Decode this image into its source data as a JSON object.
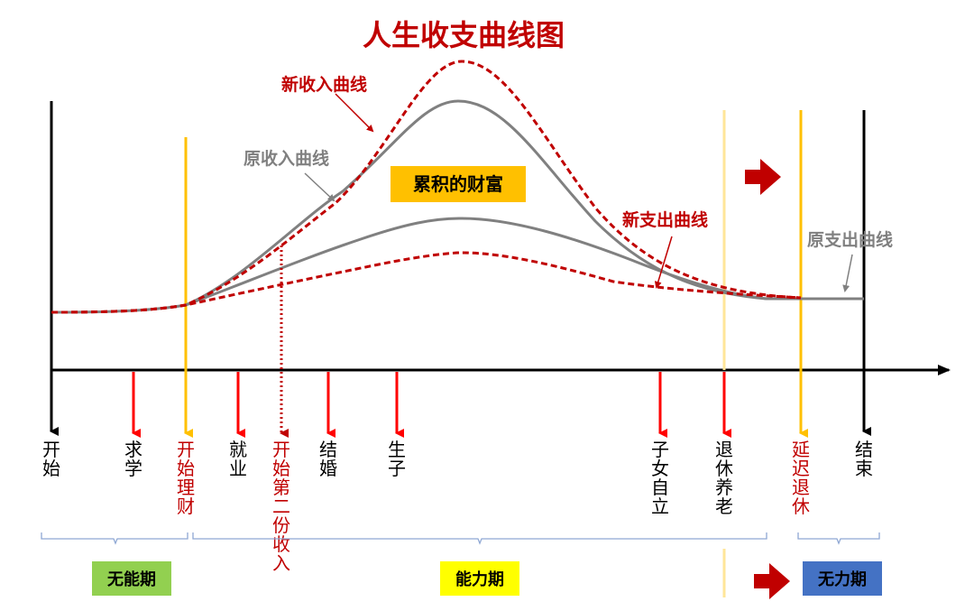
{
  "title": "人生收支曲线图",
  "curve_labels": {
    "new_income": "新收入曲线",
    "orig_income": "原收入曲线",
    "new_expense": "新支出曲线",
    "orig_expense": "原支出曲线"
  },
  "wealth_label": "累积的财富",
  "milestones": [
    {
      "key": "start",
      "label": "开始"
    },
    {
      "key": "study",
      "label": "求学"
    },
    {
      "key": "start-finance",
      "label": "开始理财"
    },
    {
      "key": "employment",
      "label": "就业"
    },
    {
      "key": "second-income",
      "label": "开始第二份收入"
    },
    {
      "key": "marriage",
      "label": "结婚"
    },
    {
      "key": "child",
      "label": "生子"
    },
    {
      "key": "children-independent",
      "label": "子女自立"
    },
    {
      "key": "retirement",
      "label": "退休养老"
    },
    {
      "key": "delayed-retirement",
      "label": "延迟退休"
    },
    {
      "key": "end",
      "label": "结束"
    }
  ],
  "periods": {
    "incapable": "无能期",
    "capable": "能力期",
    "powerless": "无力期"
  },
  "colors": {
    "title": "#c00000",
    "new_curve": "#c00000",
    "orig_curve": "#808080",
    "axis": "#000000",
    "marker_red": "#ff0000",
    "marker_yellow": "#ffc000",
    "marker_light_yellow": "#ffe699",
    "wealth_bg": "#ffc000",
    "period_green": "#92d050",
    "period_yellow": "#ffff00",
    "period_blue": "#4472c4"
  }
}
